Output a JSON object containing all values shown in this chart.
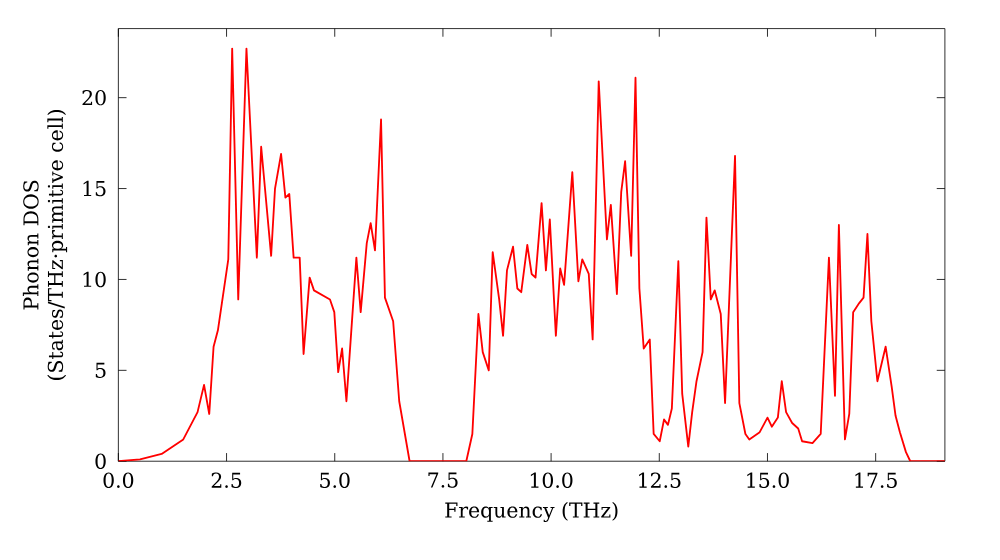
{
  "chart_data": {
    "type": "line",
    "xlabel": "Frequency (THz)",
    "ylabel": "Phonon DOS\n(States/THz·primitive cell)",
    "xlim": [
      0,
      19.1
    ],
    "ylim": [
      0,
      23.8
    ],
    "xticks": [
      {
        "value": 0,
        "label": "0.0"
      },
      {
        "value": 2.5,
        "label": "2.5"
      },
      {
        "value": 5,
        "label": "5.0"
      },
      {
        "value": 7.5,
        "label": "7.5"
      },
      {
        "value": 10,
        "label": "10.0"
      },
      {
        "value": 12.5,
        "label": "12.5"
      },
      {
        "value": 15,
        "label": "15.0"
      },
      {
        "value": 17.5,
        "label": "17.5"
      }
    ],
    "yticks": [
      0,
      5,
      10,
      15,
      20
    ],
    "grid": false,
    "marker": "none",
    "line_style": "solid",
    "series": [
      {
        "color": "#ff0000",
        "x": [
          0,
          0.5,
          1.0,
          1.5,
          1.83,
          1.98,
          2.1,
          2.2,
          2.3,
          2.54,
          2.63,
          2.77,
          2.96,
          3.2,
          3.3,
          3.53,
          3.62,
          3.76,
          3.86,
          3.95,
          4.05,
          4.19,
          4.28,
          4.42,
          4.52,
          4.89,
          4.99,
          5.08,
          5.17,
          5.27,
          5.5,
          5.6,
          5.74,
          5.83,
          5.93,
          6.07,
          6.16,
          6.35,
          6.49,
          6.73,
          8.04,
          8.18,
          8.32,
          8.42,
          8.56,
          8.65,
          8.8,
          8.89,
          8.98,
          9.12,
          9.22,
          9.31,
          9.45,
          9.55,
          9.64,
          9.78,
          9.88,
          9.97,
          10.11,
          10.21,
          10.3,
          10.49,
          10.63,
          10.72,
          10.87,
          10.96,
          11.1,
          11.29,
          11.38,
          11.52,
          11.62,
          11.71,
          11.85,
          11.95,
          12.04,
          12.14,
          12.28,
          12.37,
          12.51,
          12.61,
          12.7,
          12.79,
          12.94,
          13.03,
          13.17,
          13.26,
          13.36,
          13.5,
          13.59,
          13.69,
          13.78,
          13.92,
          14.02,
          14.25,
          14.35,
          14.49,
          14.58,
          14.82,
          15.0,
          15.1,
          15.24,
          15.33,
          15.43,
          15.57,
          15.71,
          15.8,
          16.04,
          16.23,
          16.42,
          16.56,
          16.65,
          16.79,
          16.89,
          16.98,
          17.12,
          17.22,
          17.31,
          17.4,
          17.54,
          17.73,
          17.87,
          17.96,
          18.06,
          18.2,
          18.3,
          19.1
        ],
        "values": [
          0,
          0.1,
          0.4,
          1.2,
          2.7,
          4.2,
          2.6,
          6.3,
          7.2,
          11.1,
          22.7,
          8.9,
          22.7,
          11.2,
          17.3,
          11.3,
          15.0,
          16.9,
          14.5,
          14.7,
          11.2,
          11.2,
          5.9,
          10.1,
          9.4,
          8.9,
          8.2,
          4.9,
          6.2,
          3.3,
          11.2,
          8.2,
          12.0,
          13.1,
          11.6,
          18.8,
          9.0,
          7.7,
          3.3,
          0,
          0,
          1.5,
          8.1,
          6.0,
          5.0,
          11.5,
          8.9,
          6.9,
          10.5,
          11.8,
          9.5,
          9.3,
          11.9,
          10.3,
          10.1,
          14.2,
          10.5,
          13.3,
          6.9,
          10.6,
          9.7,
          15.9,
          9.9,
          11.1,
          10.3,
          6.7,
          20.9,
          12.2,
          14.1,
          9.2,
          14.8,
          16.5,
          11.3,
          21.1,
          9.5,
          6.2,
          6.7,
          1.5,
          1.1,
          2.3,
          2.0,
          2.9,
          11.0,
          3.7,
          0.8,
          2.7,
          4.4,
          6.0,
          13.4,
          8.9,
          9.4,
          8.1,
          3.2,
          16.8,
          3.2,
          1.5,
          1.2,
          1.6,
          2.4,
          1.9,
          2.4,
          4.4,
          2.7,
          2.1,
          1.8,
          1.1,
          1.0,
          1.5,
          11.2,
          3.6,
          13.0,
          1.2,
          2.6,
          8.2,
          8.7,
          9.0,
          12.5,
          7.7,
          4.4,
          6.3,
          4.1,
          2.5,
          1.6,
          0.5,
          0,
          0
        ]
      }
    ]
  }
}
